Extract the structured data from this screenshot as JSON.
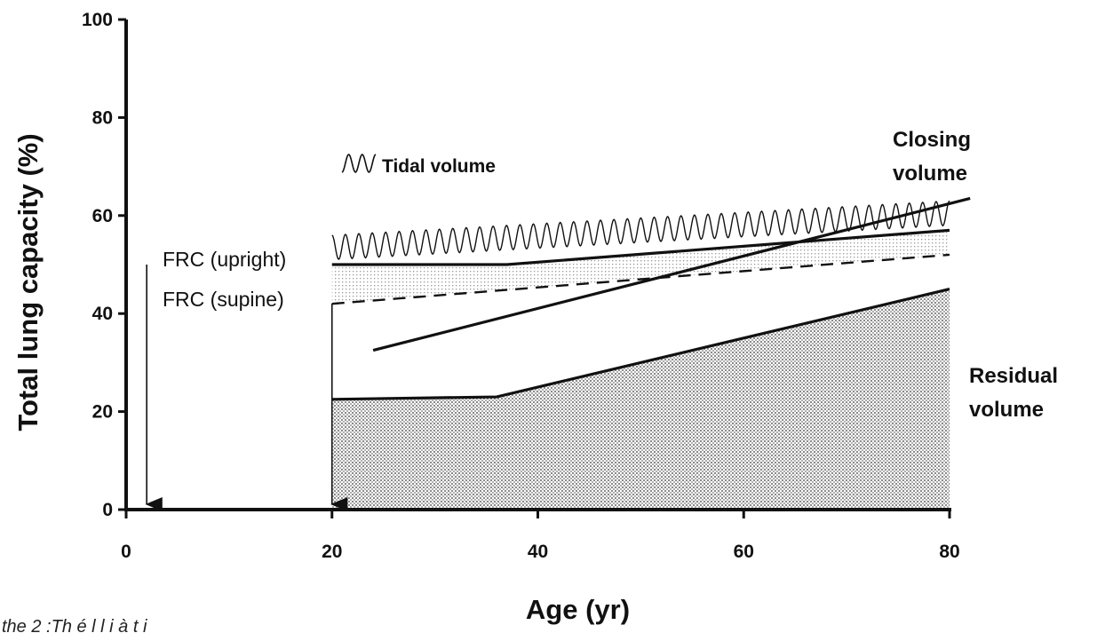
{
  "chart_data": {
    "type": "area",
    "xlabel": "Age (yr)",
    "ylabel": "Total lung capacity (%)",
    "xlim": [
      0,
      80
    ],
    "ylim": [
      0,
      100
    ],
    "xticks": [
      "0",
      "20",
      "40",
      "60",
      "80"
    ],
    "yticks": [
      "0",
      "20",
      "40",
      "60",
      "80",
      "100"
    ],
    "grid": false,
    "series": [
      {
        "name": "Residual volume",
        "x": [
          20,
          36,
          80
        ],
        "y": [
          22.5,
          23,
          45
        ]
      },
      {
        "name": "FRC (supine)",
        "x": [
          20,
          80
        ],
        "y": [
          42,
          52
        ]
      },
      {
        "name": "FRC (upright)",
        "x": [
          20,
          37,
          80
        ],
        "y": [
          50,
          50,
          57
        ]
      },
      {
        "name": "Closing volume",
        "x": [
          24,
          82
        ],
        "y": [
          32.5,
          63.5
        ]
      },
      {
        "name": "Tidal volume",
        "x": [
          20,
          80
        ],
        "y_low": [
          51,
          58
        ],
        "y_high": [
          56,
          63
        ]
      }
    ],
    "annotations": {
      "tidal_volume": "Tidal volume",
      "closing_volume_line1": "Closing",
      "closing_volume_line2": "volume",
      "residual_volume_line1": "Residual",
      "residual_volume_line2": "volume",
      "frc_upright": "FRC (upright)",
      "frc_supine": "FRC (supine)"
    },
    "markers": [
      {
        "x": 2,
        "from_y": 50,
        "to_y": 0
      },
      {
        "x": 20,
        "from_y": 42,
        "to_y": 0
      }
    ]
  },
  "caption_fragment": "the 2 :Th  é  l  l  i  à  t  i"
}
